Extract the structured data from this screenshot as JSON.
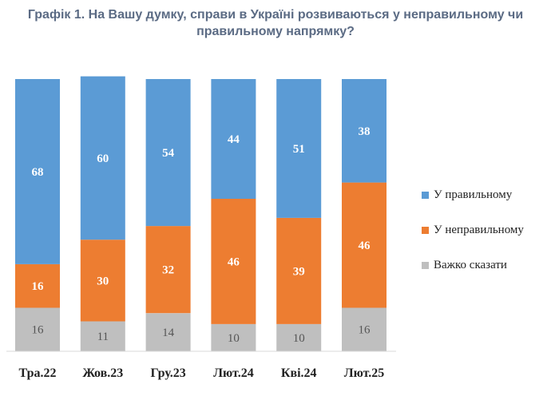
{
  "title": {
    "line1": "Графік 1. На Вашу думку, справи в Україні розвиваються у неправильному чи",
    "line2": "правильному напрямку?"
  },
  "colors": {
    "right": "#5b9bd5",
    "wrong": "#ed7d31",
    "hard": "#bfbfbf"
  },
  "chart_data": {
    "type": "bar",
    "stacked": true,
    "categories": [
      "Тра.22",
      "Жов.23",
      "Гру.23",
      "Лют.24",
      "Кві.24",
      "Лют.25"
    ],
    "series": [
      {
        "name": "Важко сказати",
        "values": [
          16,
          11,
          14,
          10,
          10,
          16
        ]
      },
      {
        "name": "У неправильному",
        "values": [
          16,
          30,
          32,
          46,
          39,
          46
        ]
      },
      {
        "name": "У правильному",
        "values": [
          68,
          60,
          54,
          44,
          51,
          38
        ]
      }
    ],
    "ylim": [
      0,
      100
    ],
    "grid": false,
    "legend": "right"
  },
  "legend": [
    {
      "label": "У правильному",
      "color_key": "right"
    },
    {
      "label": "У неправильному",
      "color_key": "wrong"
    },
    {
      "label": "Важко сказати",
      "color_key": "hard"
    }
  ]
}
